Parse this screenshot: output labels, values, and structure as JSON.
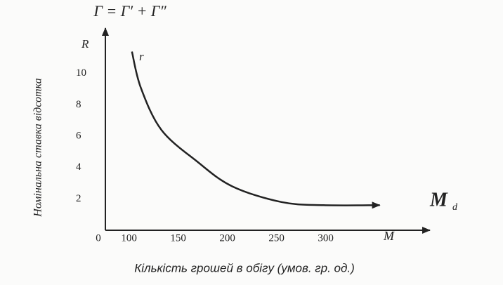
{
  "chart_data": {
    "type": "line",
    "title": "Г = Г′ + Г″",
    "y_axis_symbol": "R",
    "x_axis_symbol": "M",
    "origin_label": "0",
    "curve_label": "r",
    "curve_end_label": "M",
    "curve_end_subscript": "d",
    "x_label": "Кількість грошей в обігу (умов. гр. од.)",
    "y_label": "Номінальна ставка відсотка",
    "x": [
      103,
      112,
      133,
      169,
      205,
      255,
      298,
      355
    ],
    "values": [
      11.4,
      9.1,
      6.4,
      4.4,
      2.8,
      1.8,
      1.6,
      1.6
    ],
    "color": "#222222",
    "xlim": [
      76,
      406
    ],
    "ylim": [
      0,
      12.9
    ],
    "xticks": [
      100,
      150,
      200,
      250,
      300
    ],
    "yticks": [
      2,
      4,
      6,
      8,
      10
    ],
    "grid": false
  }
}
